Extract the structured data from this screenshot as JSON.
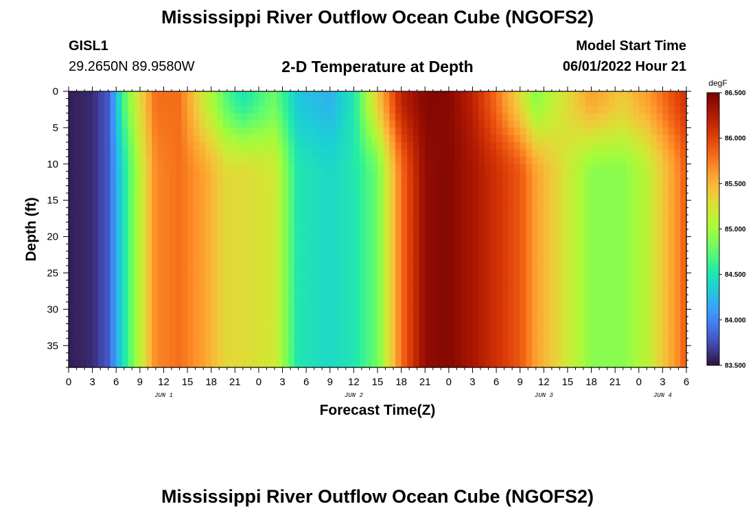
{
  "header": {
    "title": "Mississippi River Outflow Ocean Cube (NGOFS2)",
    "station_id": "GISL1",
    "station_coords": "29.2650N  89.9580W",
    "subtitle": "2-D Temperature at Depth",
    "model_start_label": "Model Start Time",
    "model_start_value": "06/01/2022 Hour 21"
  },
  "footer": {
    "title": "Mississippi River Outflow Ocean Cube (NGOFS2)"
  },
  "chart_data": {
    "type": "heatmap",
    "title": "2-D Temperature at Depth",
    "xlabel": "Forecast Time(Z)",
    "ylabel": "Depth (ft)",
    "x_tick_labels": [
      "0",
      "3",
      "6",
      "9",
      "12",
      "15",
      "18",
      "21",
      "0",
      "3",
      "6",
      "9",
      "12",
      "15",
      "18",
      "21",
      "0",
      "3",
      "6",
      "9",
      "12",
      "15",
      "18",
      "21",
      "0",
      "3",
      "6"
    ],
    "x_day_labels": [
      {
        "label": "JUN 1",
        "hour": 12
      },
      {
        "label": "JUN 2",
        "hour": 36
      },
      {
        "label": "JUN 3",
        "hour": 60
      },
      {
        "label": "JUN 4",
        "hour": 75
      }
    ],
    "x_range_hours": [
      0,
      78
    ],
    "y_ticks": [
      0,
      5,
      10,
      15,
      20,
      25,
      30,
      35
    ],
    "y_range_ft": [
      0,
      38
    ],
    "y_inverted": true,
    "colorbar": {
      "unit": "degF",
      "min": 83.5,
      "max": 86.5,
      "tick_labels": [
        "86.500",
        "86.000",
        "85.500",
        "85.000",
        "84.500",
        "84.000",
        "83.500"
      ],
      "colormap": "turbo"
    },
    "temperature_profile_degF": {
      "hours": [
        0,
        3,
        5,
        7,
        9,
        11,
        14,
        17,
        20,
        22,
        26,
        29,
        33,
        36,
        39,
        42,
        45,
        48,
        51,
        54,
        57,
        59,
        63,
        66,
        70,
        73,
        75,
        77,
        78
      ],
      "deep": [
        83.55,
        83.6,
        83.8,
        84.5,
        85.1,
        85.7,
        85.8,
        85.6,
        85.3,
        85.3,
        85.2,
        84.5,
        84.4,
        84.5,
        84.8,
        85.8,
        86.4,
        86.45,
        86.3,
        86.1,
        85.9,
        85.6,
        85.2,
        84.9,
        84.9,
        85.1,
        85.4,
        85.7,
        85.9
      ],
      "surface": [
        83.55,
        83.6,
        83.8,
        84.7,
        85.3,
        85.8,
        85.8,
        85.2,
        84.7,
        84.5,
        84.8,
        84.3,
        84.2,
        84.5,
        85.4,
        86.2,
        86.45,
        86.45,
        86.2,
        85.8,
        85.3,
        84.9,
        85.3,
        85.6,
        85.4,
        85.6,
        85.8,
        86.0,
        86.1
      ],
      "surface_layer_depth_ft": 10
    }
  }
}
